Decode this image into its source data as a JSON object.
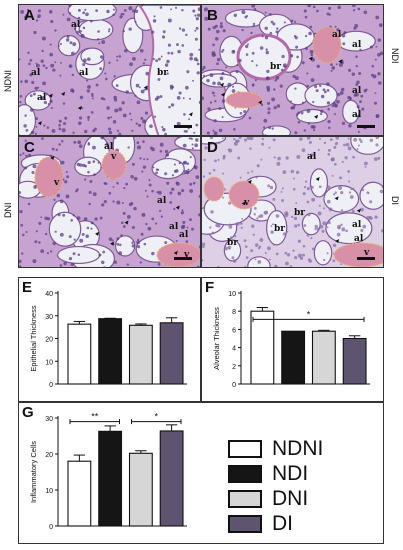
{
  "histology": {
    "panels": [
      {
        "id": "A",
        "side_label": "NDNI",
        "tissue": "pink-purple",
        "annotations": [
          "al",
          "al",
          "al",
          "al",
          "br"
        ]
      },
      {
        "id": "B",
        "side_label": "NDI",
        "tissue": "pink-purple",
        "annotations": [
          "al",
          "al",
          "br",
          "al",
          "al"
        ]
      },
      {
        "id": "C",
        "side_label": "DNI",
        "tissue": "pink-purple",
        "annotations": [
          "al",
          "v",
          "v",
          "al",
          "al",
          "al",
          "v"
        ]
      },
      {
        "id": "D",
        "side_label": "DI",
        "tissue": "pale-lilac",
        "annotations": [
          "al",
          "v",
          "br",
          "br",
          "br",
          "al",
          "al",
          "v"
        ]
      }
    ]
  },
  "colors": {
    "NDNI": "#ffffff",
    "NDI": "#151515",
    "DNI": "#d6d6d6",
    "DI": "#5e5470",
    "annotation_outline": "#e8b46a",
    "tissue_bg": "#c6a3d0",
    "tissue_bg_d": "#ddd0e6",
    "lumen": "#eef0f6"
  },
  "legend": [
    {
      "label": "NDNI",
      "color": "#ffffff"
    },
    {
      "label": "NDI",
      "color": "#151515"
    },
    {
      "label": "DNI",
      "color": "#d6d6d6"
    },
    {
      "label": "DI",
      "color": "#5e5470"
    }
  ],
  "chart_data": [
    {
      "panel": "E",
      "type": "bar",
      "categories": [
        "NDNI",
        "NDI",
        "DNI",
        "DI"
      ],
      "values": [
        26.3,
        28.7,
        25.8,
        26.9
      ],
      "errors": [
        1.2,
        0.2,
        0.6,
        2.2
      ],
      "ylabel": "Epithelial Thickness",
      "ylim": [
        0,
        40
      ],
      "yticks": [
        0,
        10,
        20,
        30,
        40
      ],
      "significance": []
    },
    {
      "panel": "F",
      "type": "bar",
      "categories": [
        "NDNI",
        "NDI",
        "DNI",
        "DI"
      ],
      "values": [
        8.0,
        5.8,
        5.8,
        5.0
      ],
      "errors": [
        0.4,
        0.0,
        0.1,
        0.3
      ],
      "ylabel": "Alveolar Thickness",
      "ylim": [
        0,
        10
      ],
      "yticks": [
        0,
        2,
        4,
        6,
        8,
        10
      ],
      "significance": [
        {
          "from": 0,
          "to": 3,
          "y": 7.1,
          "label": "*"
        }
      ]
    },
    {
      "panel": "G",
      "type": "bar",
      "categories": [
        "NDNI",
        "NDI",
        "DNI",
        "DI"
      ],
      "values": [
        18.0,
        26.3,
        20.2,
        26.4
      ],
      "errors": [
        1.7,
        1.5,
        0.7,
        1.7
      ],
      "ylabel": "Inflammatory Cells",
      "ylim": [
        0,
        30
      ],
      "yticks": [
        0,
        10,
        20,
        30
      ],
      "significance": [
        {
          "from": 0,
          "to": 1,
          "y": 29.0,
          "label": "**"
        },
        {
          "from": 2,
          "to": 3,
          "y": 29.0,
          "label": "*"
        }
      ]
    }
  ]
}
